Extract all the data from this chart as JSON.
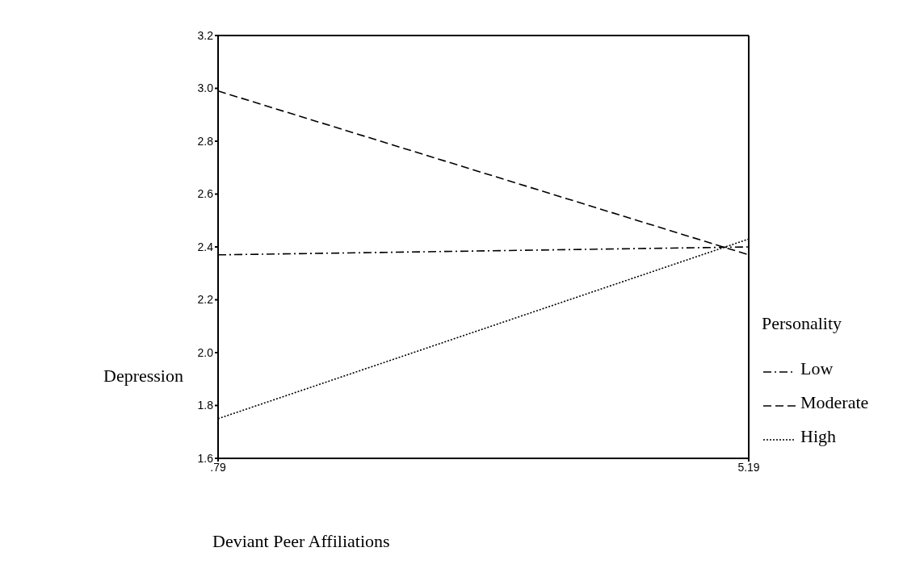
{
  "chart_data": {
    "type": "line",
    "xlabel": "Deviant Peer Affiliations",
    "ylabel": "Depression",
    "legend_title": "Personality",
    "legend": "right",
    "marker": "none",
    "x": [
      0.79,
      5.19
    ],
    "xlim": [
      0.79,
      5.19
    ],
    "xticks": [
      {
        "value": 0.79,
        "label": ".79"
      },
      {
        "value": 5.19,
        "label": "5.19"
      }
    ],
    "ylim": [
      1.6,
      3.2
    ],
    "yticks": [
      {
        "value": 1.6,
        "label": "1.6"
      },
      {
        "value": 1.8,
        "label": "1.8"
      },
      {
        "value": 2.0,
        "label": "2.0"
      },
      {
        "value": 2.2,
        "label": "2.2"
      },
      {
        "value": 2.4,
        "label": "2.4"
      },
      {
        "value": 2.6,
        "label": "2.6"
      },
      {
        "value": 2.8,
        "label": "2.8"
      },
      {
        "value": 3.0,
        "label": "3.0"
      },
      {
        "value": 3.2,
        "label": "3.2"
      }
    ],
    "series": [
      {
        "name": "Low",
        "color": "#000000",
        "line_style": "dashdot",
        "values": [
          2.37,
          2.4
        ]
      },
      {
        "name": "Moderate",
        "color": "#000000",
        "line_style": "dashed",
        "values": [
          2.99,
          2.37
        ]
      },
      {
        "name": "High",
        "color": "#000000",
        "line_style": "dotted",
        "values": [
          1.75,
          2.43
        ]
      }
    ]
  }
}
